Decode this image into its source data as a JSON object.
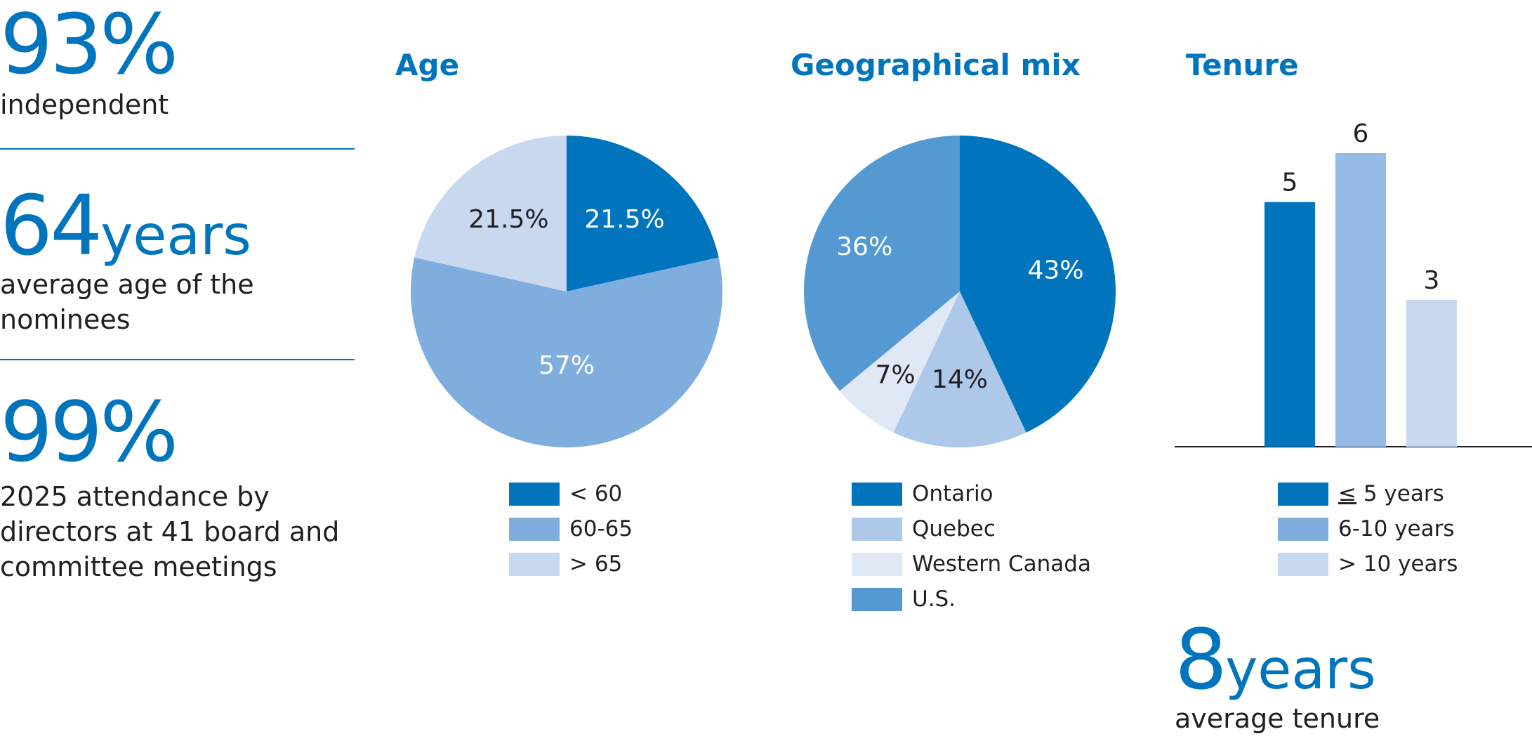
{
  "stats": {
    "independent": {
      "value": "93%",
      "label": "independent"
    },
    "age": {
      "value": "64",
      "unit": "years",
      "label_line1": "average age of the",
      "label_line2": "nominees"
    },
    "attendance": {
      "value": "99%",
      "label_line1": "2025 attendance by",
      "label_line2": "directors at 41 board and",
      "label_line3": "committee meetings"
    },
    "tenure": {
      "value": "8",
      "unit": "years",
      "label": "average tenure"
    }
  },
  "colors": {
    "accent": "#0075be",
    "mid": "#7fadde",
    "light": "#c8d8ef",
    "quebec": "#aec8ea",
    "western": "#e0e8f6",
    "us": "#5599d3",
    "text": "#231f20"
  },
  "chart_data": [
    {
      "type": "pie",
      "title": "Age",
      "slices": [
        {
          "label": "< 60",
          "value": 21.5,
          "display": "21.5%",
          "color": "#0075be",
          "text_color": "#ffffff"
        },
        {
          "label": "60-65",
          "value": 57,
          "display": "57%",
          "color": "#7fadde",
          "text_color": "#ffffff"
        },
        {
          "label": "> 65",
          "value": 21.5,
          "display": "21.5%",
          "color": "#c8d8ef",
          "text_color": "#231f20"
        }
      ]
    },
    {
      "type": "pie",
      "title": "Geographical mix",
      "slices": [
        {
          "label": "Ontario",
          "value": 43,
          "display": "43%",
          "color": "#0075be",
          "text_color": "#ffffff"
        },
        {
          "label": "Quebec",
          "value": 14,
          "display": "14%",
          "color": "#aec8ea",
          "text_color": "#231f20"
        },
        {
          "label": "Western Canada",
          "value": 7,
          "display": "7%",
          "color": "#e0e8f6",
          "text_color": "#231f20"
        },
        {
          "label": "U.S.",
          "value": 36,
          "display": "36%",
          "color": "#5599d3",
          "text_color": "#ffffff"
        }
      ]
    },
    {
      "type": "bar",
      "title": "Tenure",
      "categories": [
        "≤ 5 years",
        "6-10 years",
        "> 10 years"
      ],
      "legend": [
        {
          "prefix": "≤",
          "rest": " 5 years",
          "color": "#0075be"
        },
        {
          "prefix": "",
          "rest": "6-10 years",
          "color": "#7fadde"
        },
        {
          "prefix": "",
          "rest": "> 10 years",
          "color": "#c8d8ef"
        }
      ],
      "values": [
        5,
        6,
        3
      ],
      "colors": [
        "#0075be",
        "#95bae5",
        "#c8d8ef"
      ]
    }
  ]
}
